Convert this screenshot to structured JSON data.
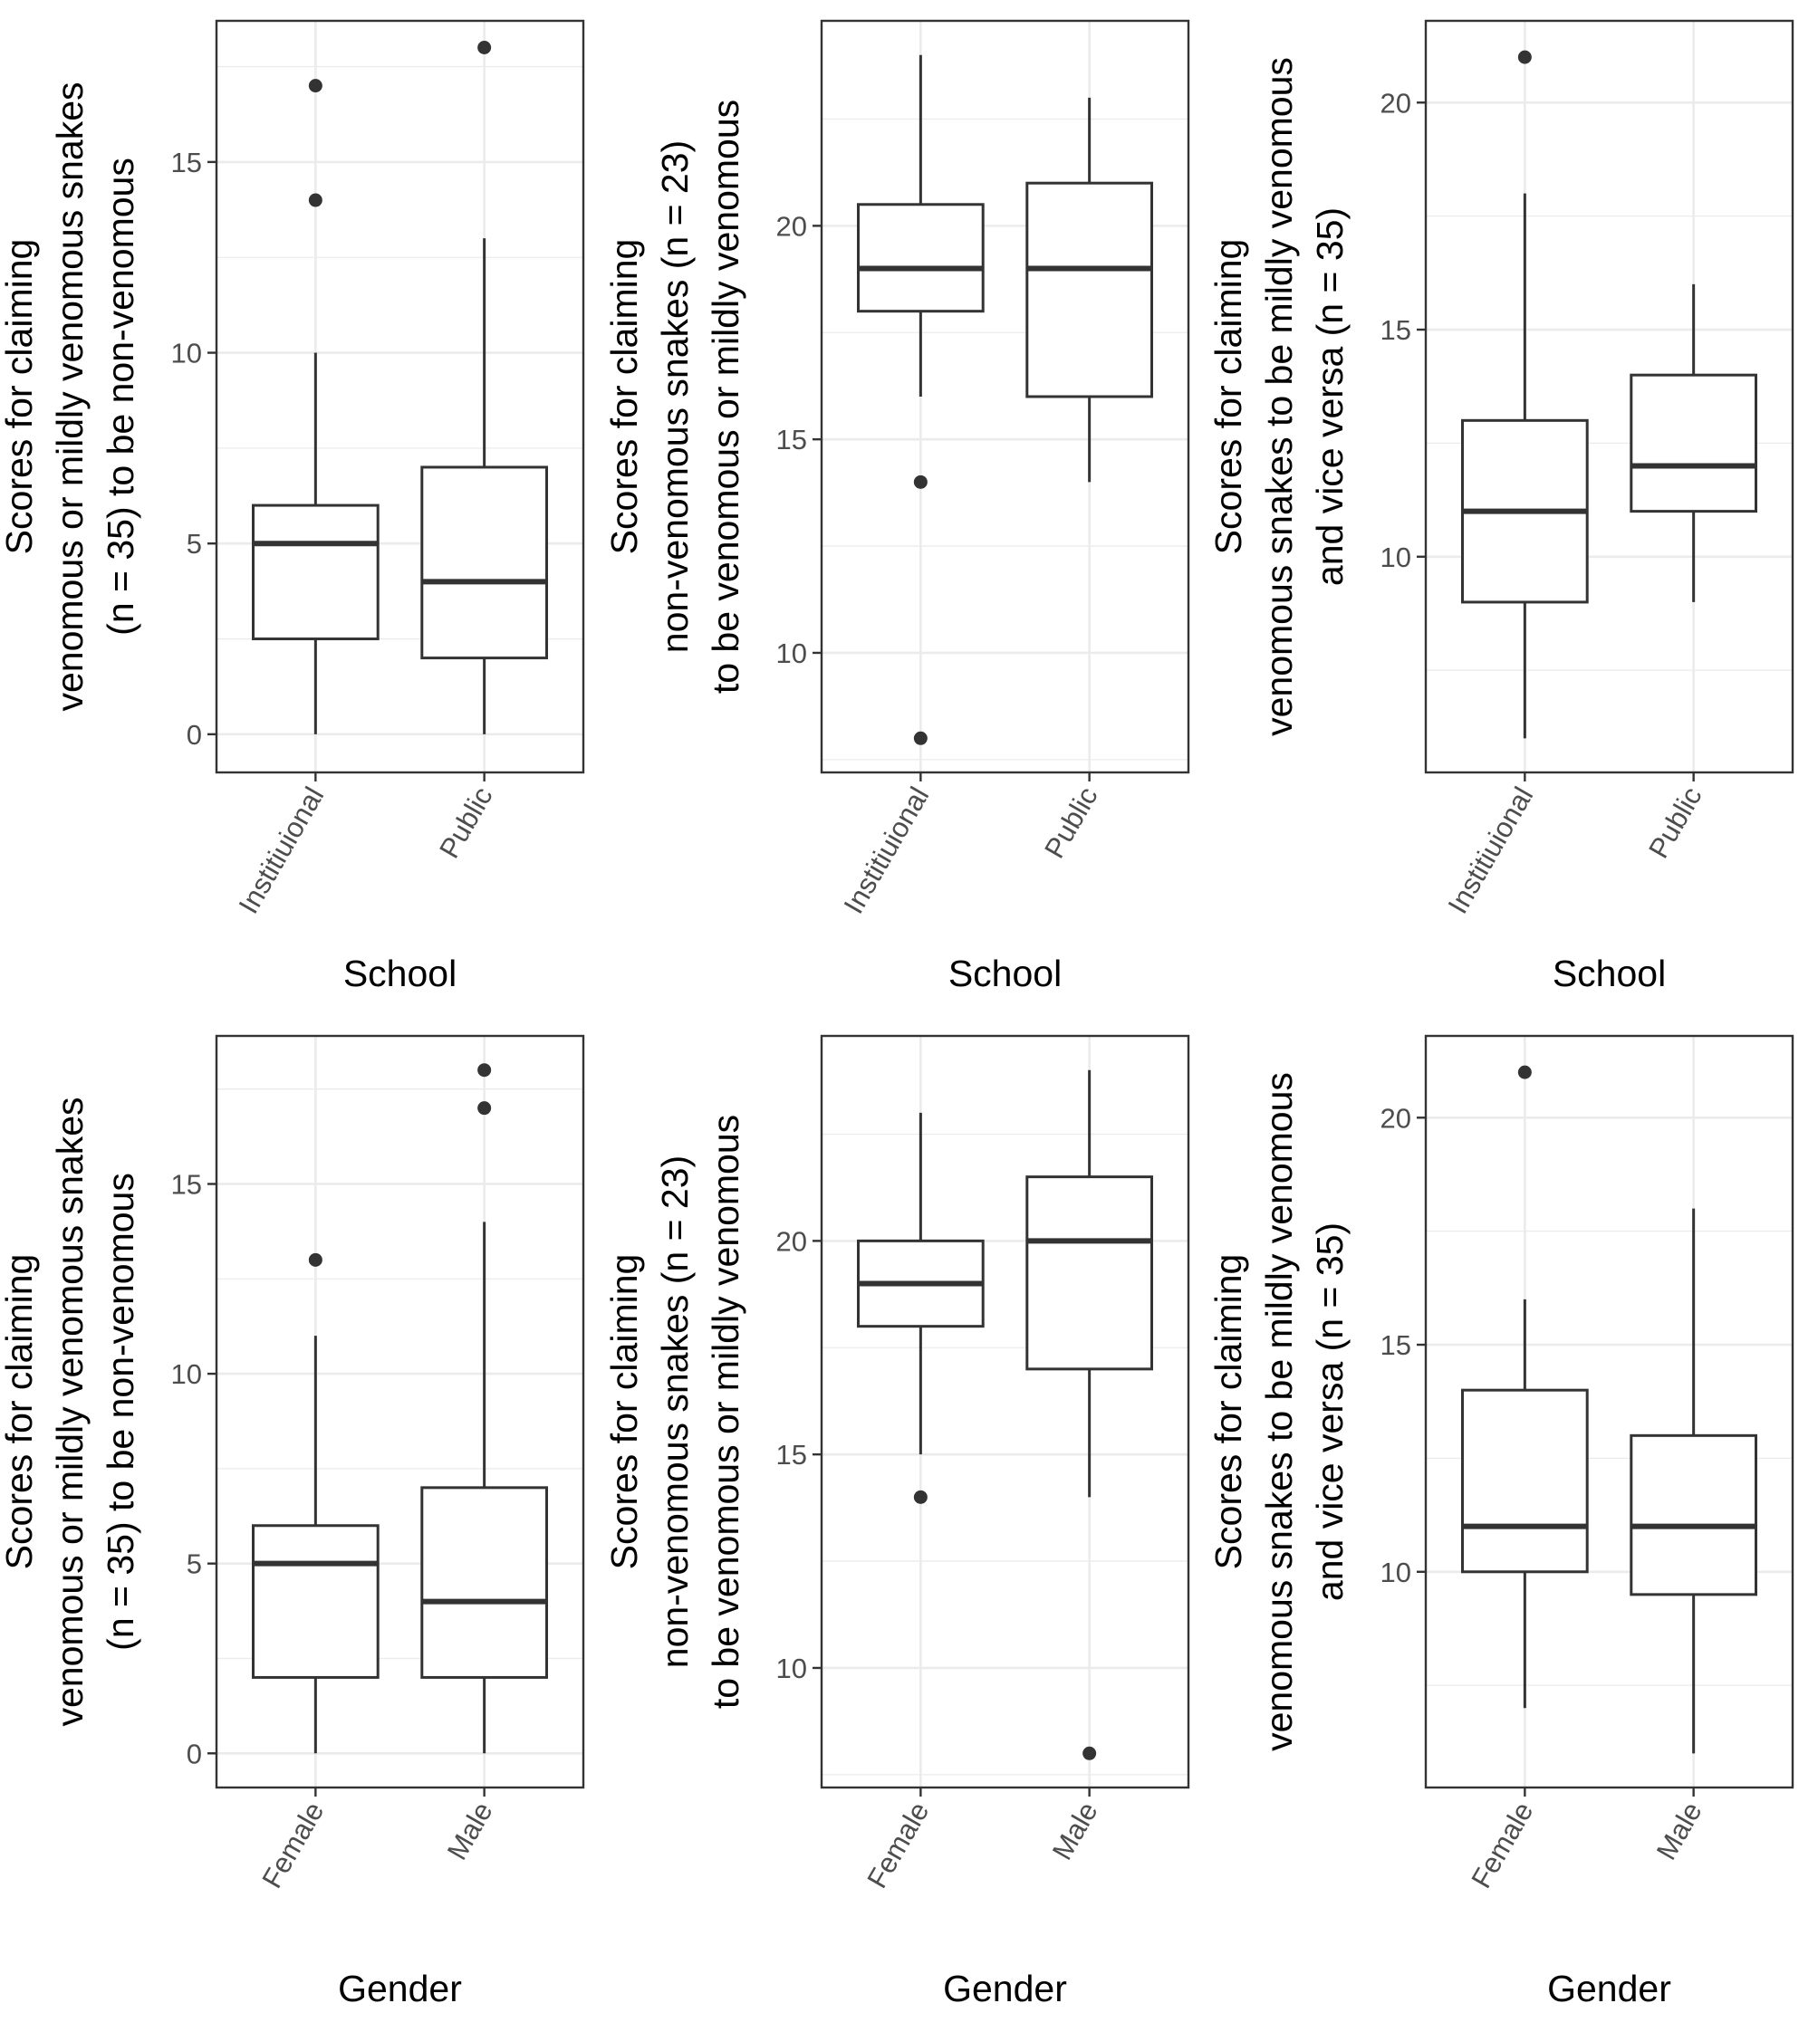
{
  "figure": {
    "panel_count": 6,
    "layout": "2 rows x 3 columns"
  },
  "colors": {
    "background": "#ffffff",
    "panel_border": "#333333",
    "grid": "#ebebeb",
    "box_line": "#333333",
    "tick_label": "#4d4d4d",
    "axis_title": "#000000"
  },
  "chart_data": [
    {
      "type": "box",
      "xlabel": "School",
      "ylabel_lines": [
        "Scores for claiming",
        "venomous or mildly venomous snakes",
        "(n = 35) to be non-venomous"
      ],
      "categories": [
        "Institiuional",
        "Public"
      ],
      "ylim": [
        -1,
        18.7
      ],
      "yticks": [
        0,
        5,
        10,
        15
      ],
      "grid": true,
      "legend": "none",
      "boxes": [
        {
          "category": "Institiuional",
          "whisker_low": 0,
          "q1": 2.5,
          "median": 5,
          "q3": 6,
          "whisker_high": 10,
          "outliers": [
            14,
            17
          ]
        },
        {
          "category": "Public",
          "whisker_low": 0,
          "q1": 2,
          "median": 4,
          "q3": 7,
          "whisker_high": 13,
          "outliers": [
            18
          ]
        }
      ]
    },
    {
      "type": "box",
      "xlabel": "School",
      "ylabel_lines": [
        "Scores for claiming",
        "non-venomous snakes (n = 23)",
        "to be venomous or mildly venomous"
      ],
      "categories": [
        "Institiuional",
        "Public"
      ],
      "ylim": [
        7.2,
        24.8
      ],
      "yticks": [
        10,
        15,
        20
      ],
      "grid": true,
      "legend": "none",
      "boxes": [
        {
          "category": "Institiuional",
          "whisker_low": 16,
          "q1": 18,
          "median": 19,
          "q3": 20.5,
          "whisker_high": 24,
          "outliers": [
            8,
            14
          ]
        },
        {
          "category": "Public",
          "whisker_low": 14,
          "q1": 16,
          "median": 19,
          "q3": 21,
          "whisker_high": 23,
          "outliers": []
        }
      ]
    },
    {
      "type": "box",
      "xlabel": "School",
      "ylabel_lines": [
        "Scores for claiming",
        "venomous snakes to be mildly venomous",
        "and vice versa (n = 35)"
      ],
      "categories": [
        "Institiuional",
        "Public"
      ],
      "ylim": [
        5.25,
        21.8
      ],
      "yticks": [
        10,
        15,
        20
      ],
      "grid": true,
      "legend": "none",
      "boxes": [
        {
          "category": "Institiuional",
          "whisker_low": 6,
          "q1": 9,
          "median": 11,
          "q3": 13,
          "whisker_high": 18,
          "outliers": [
            21
          ]
        },
        {
          "category": "Public",
          "whisker_low": 9,
          "q1": 11,
          "median": 12,
          "q3": 14,
          "whisker_high": 16,
          "outliers": []
        }
      ]
    },
    {
      "type": "box",
      "xlabel": "Gender",
      "ylabel_lines": [
        "Scores for claiming",
        "venomous or mildly venomous snakes",
        "(n = 35) to be non-venomous"
      ],
      "categories": [
        "Female",
        "Male"
      ],
      "ylim": [
        -0.9,
        18.9
      ],
      "yticks": [
        0,
        5,
        10,
        15
      ],
      "grid": true,
      "legend": "none",
      "boxes": [
        {
          "category": "Female",
          "whisker_low": 0,
          "q1": 2,
          "median": 5,
          "q3": 6,
          "whisker_high": 11,
          "outliers": [
            13
          ]
        },
        {
          "category": "Male",
          "whisker_low": 0,
          "q1": 2,
          "median": 4,
          "q3": 7,
          "whisker_high": 14,
          "outliers": [
            17,
            18
          ]
        }
      ]
    },
    {
      "type": "box",
      "xlabel": "Gender",
      "ylabel_lines": [
        "Scores for claiming",
        "non-venomous snakes (n = 23)",
        "to be venomous or mildly venomous"
      ],
      "categories": [
        "Female",
        "Male"
      ],
      "ylim": [
        7.2,
        24.8
      ],
      "yticks": [
        10,
        15,
        20
      ],
      "grid": true,
      "legend": "none",
      "boxes": [
        {
          "category": "Female",
          "whisker_low": 15,
          "q1": 18,
          "median": 19,
          "q3": 20,
          "whisker_high": 23,
          "outliers": [
            14
          ]
        },
        {
          "category": "Male",
          "whisker_low": 14,
          "q1": 17,
          "median": 20,
          "q3": 21.5,
          "whisker_high": 24,
          "outliers": [
            8
          ]
        }
      ]
    },
    {
      "type": "box",
      "xlabel": "Gender",
      "ylabel_lines": [
        "Scores for claiming",
        "venomous snakes to be mildly venomous",
        "and vice versa (n = 35)"
      ],
      "categories": [
        "Female",
        "Male"
      ],
      "ylim": [
        5.25,
        21.8
      ],
      "yticks": [
        10,
        15,
        20
      ],
      "grid": true,
      "legend": "none",
      "boxes": [
        {
          "category": "Female",
          "whisker_low": 7,
          "q1": 10,
          "median": 11,
          "q3": 14,
          "whisker_high": 16,
          "outliers": [
            21
          ]
        },
        {
          "category": "Male",
          "whisker_low": 6,
          "q1": 9.5,
          "median": 11,
          "q3": 13,
          "whisker_high": 18,
          "outliers": []
        }
      ]
    }
  ]
}
